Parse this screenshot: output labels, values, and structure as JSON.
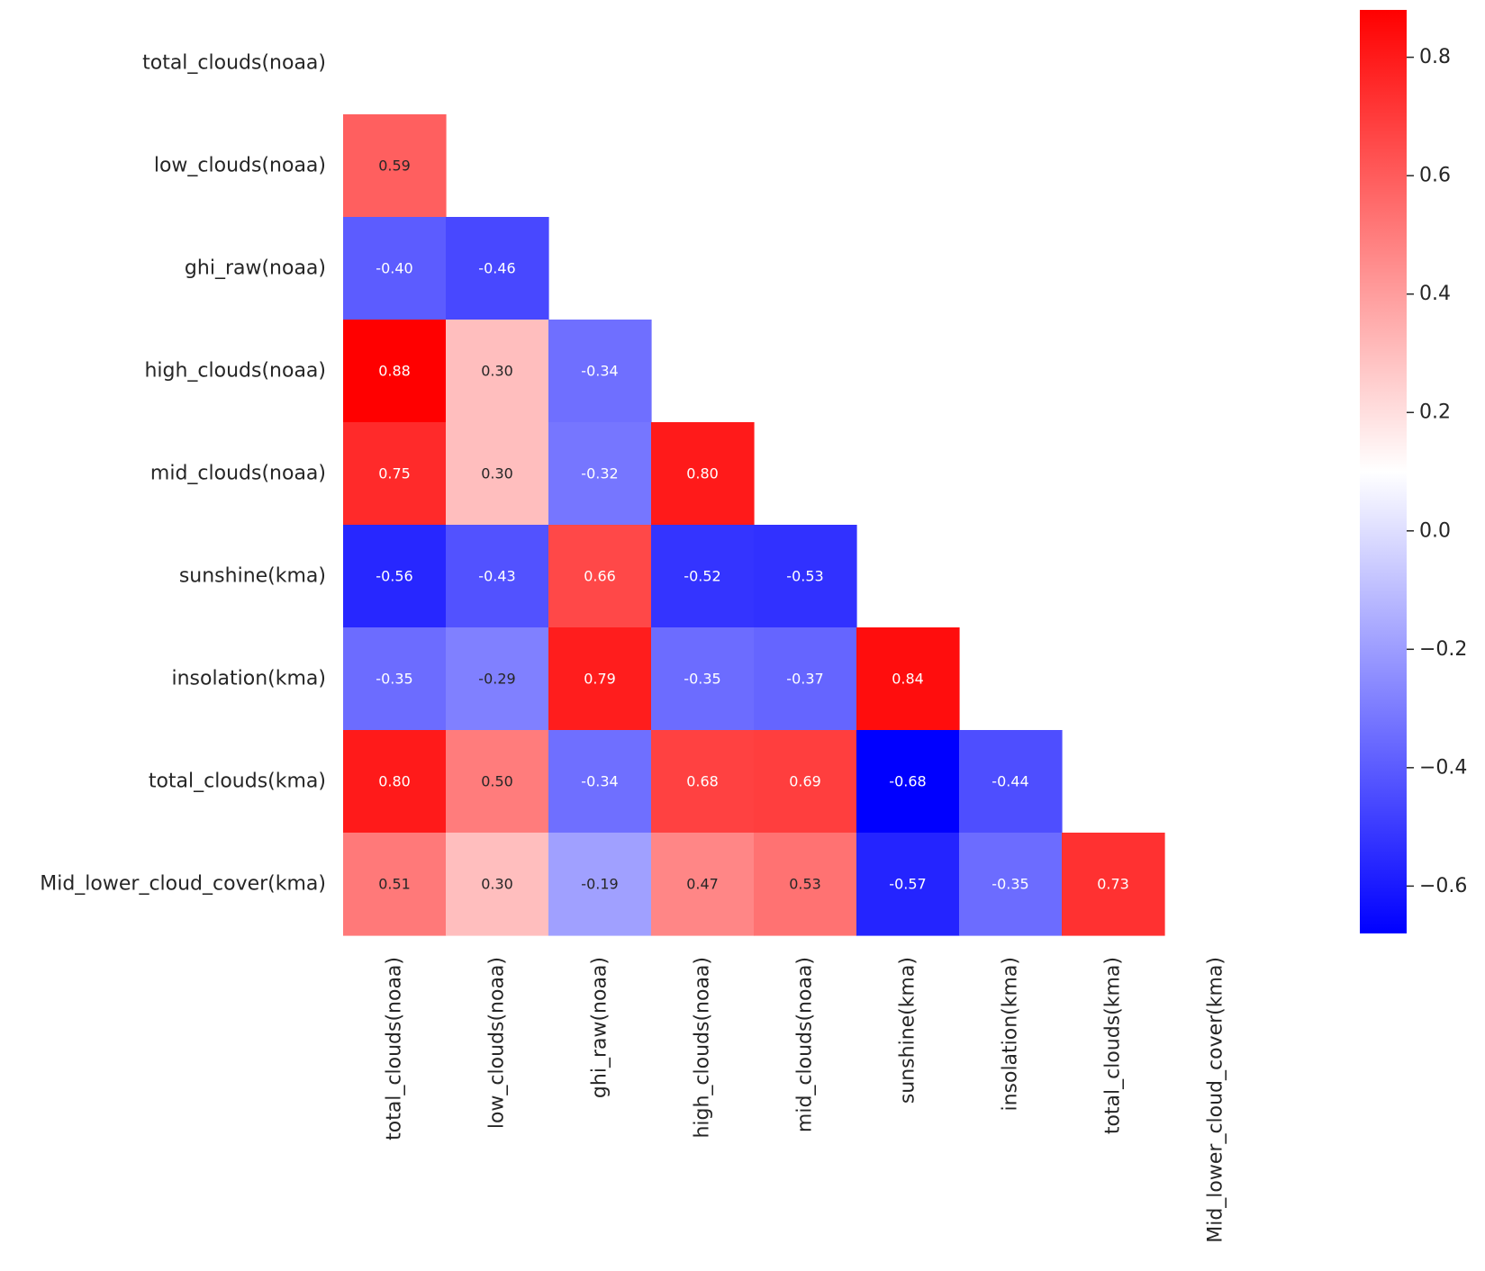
{
  "chart_data": {
    "type": "heatmap",
    "title": "",
    "variant": "lower-triangle correlation matrix",
    "colormap": "bwr",
    "colormap_colors": {
      "low": "#0000ff",
      "mid": "#ffffff",
      "high": "#ff0000"
    },
    "color_range": [
      -0.68,
      0.88
    ],
    "row_labels": [
      "total_clouds(noaa)",
      "low_clouds(noaa)",
      "ghi_raw(noaa)",
      "high_clouds(noaa)",
      "mid_clouds(noaa)",
      "sunshine(kma)",
      "insolation(kma)",
      "total_clouds(kma)",
      "Mid_lower_cloud_cover(kma)"
    ],
    "col_labels": [
      "total_clouds(noaa)",
      "low_clouds(noaa)",
      "ghi_raw(noaa)",
      "high_clouds(noaa)",
      "mid_clouds(noaa)",
      "sunshine(kma)",
      "insolation(kma)",
      "total_clouds(kma)",
      "Mid_lower_cloud_cover(kma)"
    ],
    "values": [
      [],
      [
        0.59
      ],
      [
        -0.4,
        -0.46
      ],
      [
        0.88,
        0.3,
        -0.34
      ],
      [
        0.75,
        0.3,
        -0.32,
        0.8
      ],
      [
        -0.56,
        -0.43,
        0.66,
        -0.52,
        -0.53
      ],
      [
        -0.35,
        -0.29,
        0.79,
        -0.35,
        -0.37,
        0.84
      ],
      [
        0.8,
        0.5,
        -0.34,
        0.68,
        0.69,
        -0.68,
        -0.44
      ],
      [
        0.51,
        0.3,
        -0.19,
        0.47,
        0.53,
        -0.57,
        -0.35,
        0.73
      ]
    ],
    "value_format": "0.00",
    "colorbar": {
      "ticks": [
        0.8,
        0.6,
        0.4,
        0.2,
        0.0,
        -0.2,
        -0.4,
        -0.6
      ],
      "tick_labels": [
        "0.8",
        "0.6",
        "0.4",
        "0.2",
        "0.0",
        "−0.2",
        "−0.4",
        "−0.6"
      ]
    }
  }
}
